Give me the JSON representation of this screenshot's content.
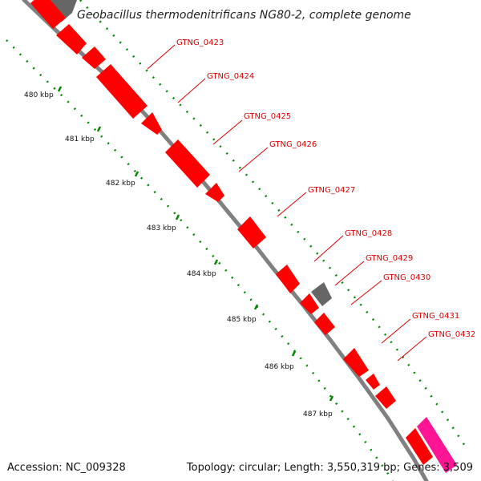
{
  "title": "Geobacillus thermodenitrificans NG80-2, complete genome",
  "footer": {
    "accession": "Accession: NC_009328",
    "summary": "Topology: circular; Length: 3,550,319 bp; Genes: 3,509"
  },
  "colors": {
    "background": "#ffffff",
    "backbone": "#808080",
    "gene_cds": "#ff0000",
    "gene_other": "#666666",
    "gene_rna": "#ff1493",
    "dots": "#008800",
    "label": "#dd0000"
  },
  "ticks": [
    {
      "label": "480 kbp"
    },
    {
      "label": "481 kbp"
    },
    {
      "label": "482 kbp"
    },
    {
      "label": "483 kbp"
    },
    {
      "label": "484 kbp"
    },
    {
      "label": "485 kbp"
    },
    {
      "label": "486 kbp"
    },
    {
      "label": "487 kbp"
    }
  ],
  "genes": [
    {
      "label": "GTNG_0423"
    },
    {
      "label": "GTNG_0424"
    },
    {
      "label": "GTNG_0425"
    },
    {
      "label": "GTNG_0426"
    },
    {
      "label": "GTNG_0427"
    },
    {
      "label": "GTNG_0428"
    },
    {
      "label": "GTNG_0429"
    },
    {
      "label": "GTNG_0430"
    },
    {
      "label": "GTNG_0431"
    },
    {
      "label": "GTNG_0432"
    }
  ]
}
